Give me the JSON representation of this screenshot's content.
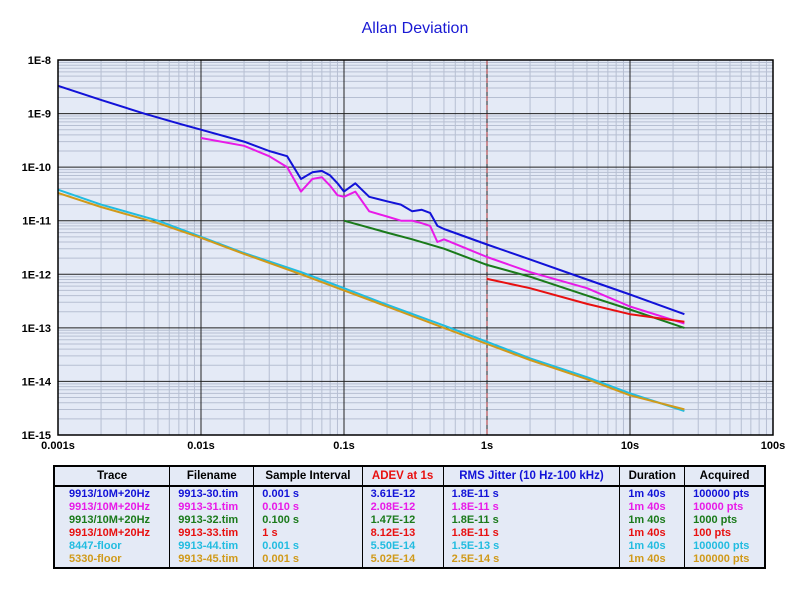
{
  "chart_data": {
    "type": "line",
    "title": "Allan Deviation",
    "x_scale": "log",
    "y_scale": "log",
    "xlim": [
      0.001,
      100
    ],
    "ylim": [
      1e-15,
      1e-08
    ],
    "grid": true,
    "x_tick_labels": [
      "0.001s",
      "0.01s",
      "0.1s",
      "1s",
      "10s",
      "100s"
    ],
    "y_tick_labels": [
      "1E-15",
      "1E-14",
      "1E-13",
      "1E-12",
      "1E-11",
      "1E-10",
      "1E-9",
      "1E-8"
    ],
    "reference_line": {
      "x": 1,
      "style": "dashed",
      "color": "#b03030"
    },
    "series": [
      {
        "name": "9913/10M+20Hz",
        "color": "#1212d8",
        "points": [
          [
            0.001,
            3.3e-09
          ],
          [
            0.002,
            1.8e-09
          ],
          [
            0.004,
            1e-09
          ],
          [
            0.007,
            6.5e-10
          ],
          [
            0.01,
            5e-10
          ],
          [
            0.02,
            3e-10
          ],
          [
            0.03,
            2e-10
          ],
          [
            0.04,
            1.6e-10
          ],
          [
            0.05,
            6e-11
          ],
          [
            0.06,
            8e-11
          ],
          [
            0.07,
            8.5e-11
          ],
          [
            0.08,
            7e-11
          ],
          [
            0.09,
            5e-11
          ],
          [
            0.1,
            3.5e-11
          ],
          [
            0.12,
            5e-11
          ],
          [
            0.15,
            2.8e-11
          ],
          [
            0.2,
            2.3e-11
          ],
          [
            0.25,
            2e-11
          ],
          [
            0.3,
            1.5e-11
          ],
          [
            0.35,
            1.6e-11
          ],
          [
            0.4,
            1.4e-11
          ],
          [
            0.45,
            8e-12
          ],
          [
            0.5,
            7e-12
          ],
          [
            1,
            3.6e-12
          ],
          [
            2,
            1.9e-12
          ],
          [
            5,
            8e-13
          ],
          [
            10,
            4.2e-13
          ],
          [
            24,
            1.8e-13
          ]
        ]
      },
      {
        "name": "9913/10M+20Hz",
        "color": "#e81ae8",
        "points": [
          [
            0.01,
            3.5e-10
          ],
          [
            0.02,
            2.5e-10
          ],
          [
            0.03,
            1.6e-10
          ],
          [
            0.04,
            1e-10
          ],
          [
            0.05,
            3.5e-11
          ],
          [
            0.06,
            6e-11
          ],
          [
            0.07,
            6.5e-11
          ],
          [
            0.08,
            4.5e-11
          ],
          [
            0.09,
            3e-11
          ],
          [
            0.1,
            2.8e-11
          ],
          [
            0.12,
            3.5e-11
          ],
          [
            0.15,
            1.5e-11
          ],
          [
            0.2,
            1.2e-11
          ],
          [
            0.25,
            1e-11
          ],
          [
            0.3,
            1e-11
          ],
          [
            0.35,
            9e-12
          ],
          [
            0.4,
            8e-12
          ],
          [
            0.45,
            4e-12
          ],
          [
            0.5,
            4.5e-12
          ],
          [
            1,
            2.1e-12
          ],
          [
            2,
            1.1e-12
          ],
          [
            5,
            5.5e-13
          ],
          [
            10,
            2.5e-13
          ],
          [
            24,
            1.2e-13
          ]
        ]
      },
      {
        "name": "9913/10M+20Hz",
        "color": "#1a7a1a",
        "points": [
          [
            0.1,
            1e-11
          ],
          [
            0.2,
            6e-12
          ],
          [
            0.3,
            4.5e-12
          ],
          [
            0.5,
            3e-12
          ],
          [
            1,
            1.5e-12
          ],
          [
            2,
            9e-13
          ],
          [
            5,
            4e-13
          ],
          [
            10,
            2.2e-13
          ],
          [
            24,
            1e-13
          ]
        ]
      },
      {
        "name": "9913/10M+20Hz",
        "color": "#e81010",
        "points": [
          [
            1,
            8.2e-13
          ],
          [
            2,
            5.5e-13
          ],
          [
            5,
            2.8e-13
          ],
          [
            10,
            1.8e-13
          ],
          [
            24,
            1.3e-13
          ]
        ]
      },
      {
        "name": "8447-floor",
        "color": "#22bce0",
        "points": [
          [
            0.001,
            3.8e-11
          ],
          [
            0.002,
            2e-11
          ],
          [
            0.005,
            1e-11
          ],
          [
            0.01,
            5e-12
          ],
          [
            0.02,
            2.5e-12
          ],
          [
            0.05,
            1.1e-12
          ],
          [
            0.1,
            5.5e-13
          ],
          [
            0.2,
            2.7e-13
          ],
          [
            0.5,
            1.1e-13
          ],
          [
            1,
            5.5e-14
          ],
          [
            2,
            2.7e-14
          ],
          [
            5,
            1.2e-14
          ],
          [
            10,
            6e-15
          ],
          [
            24,
            2.8e-15
          ]
        ]
      },
      {
        "name": "5330-floor",
        "color": "#d09a1a",
        "points": [
          [
            0.001,
            3.3e-11
          ],
          [
            0.002,
            1.8e-11
          ],
          [
            0.005,
            9e-12
          ],
          [
            0.01,
            4.8e-12
          ],
          [
            0.02,
            2.4e-12
          ],
          [
            0.05,
            1e-12
          ],
          [
            0.1,
            5e-13
          ],
          [
            0.2,
            2.5e-13
          ],
          [
            0.5,
            1e-13
          ],
          [
            1,
            5e-14
          ],
          [
            2,
            2.5e-14
          ],
          [
            5,
            1.1e-14
          ],
          [
            10,
            5.5e-15
          ],
          [
            24,
            3e-15
          ]
        ]
      }
    ]
  },
  "legend_table": {
    "headers": [
      "Trace",
      "Filename",
      "Sample Interval",
      "ADEV at 1s",
      "RMS Jitter (10 Hz-100 kHz)",
      "Duration",
      "Acquired"
    ],
    "header_colors": [
      "#000000",
      "#000000",
      "#000000",
      "#e81010",
      "#1212d8",
      "#000000",
      "#000000"
    ],
    "rows": [
      {
        "color": "#1212d8",
        "cells": [
          "9913/10M+20Hz",
          "9913-30.tim",
          "0.001 s",
          "3.61E-12",
          "1.8E-11 s",
          "1m 40s",
          "100000 pts"
        ]
      },
      {
        "color": "#e81ae8",
        "cells": [
          "9913/10M+20Hz",
          "9913-31.tim",
          "0.010 s",
          "2.08E-12",
          "1.8E-11 s",
          "1m 40s",
          "10000 pts"
        ]
      },
      {
        "color": "#1a7a1a",
        "cells": [
          "9913/10M+20Hz",
          "9913-32.tim",
          "0.100 s",
          "1.47E-12",
          "1.8E-11 s",
          "1m 40s",
          "1000 pts"
        ]
      },
      {
        "color": "#e81010",
        "cells": [
          "9913/10M+20Hz",
          "9913-33.tim",
          "1 s",
          "8.12E-13",
          "1.8E-11 s",
          "1m 40s",
          "100 pts"
        ]
      },
      {
        "color": "#22bce0",
        "cells": [
          "8447-floor",
          "9913-44.tim",
          "0.001 s",
          "5.50E-14",
          "1.5E-13 s",
          "1m 40s",
          "100000 pts"
        ]
      },
      {
        "color": "#d09a1a",
        "cells": [
          "5330-floor",
          "9913-45.tim",
          "0.001 s",
          "5.02E-14",
          "2.5E-14 s",
          "1m 40s",
          "100000 pts"
        ]
      }
    ]
  }
}
